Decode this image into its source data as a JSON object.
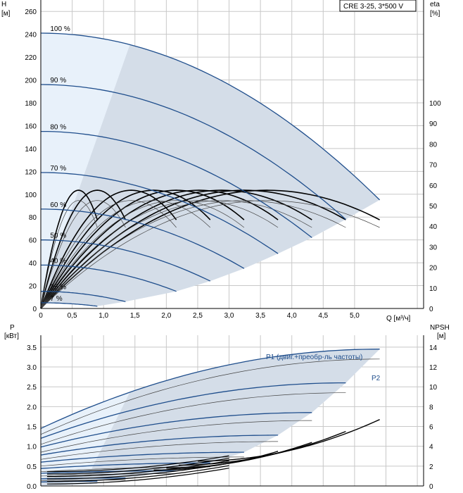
{
  "chart_data": [
    {
      "type": "line",
      "title": "CRE 3-25, 3*500 V",
      "y_label": "H",
      "y_unit": "[м]",
      "y2_label": "eta",
      "y2_unit": "[%]",
      "x_label": "Q [м³/ч]",
      "xlim": [
        0,
        6.1
      ],
      "ylim": [
        0,
        270
      ],
      "y2lim": [
        0,
        100
      ],
      "x_ticks": [
        "0",
        "0,5",
        "1,0",
        "1,5",
        "2,0",
        "2,5",
        "3,0",
        "3,5",
        "4,0",
        "4,5",
        "5,0"
      ],
      "y_ticks": [
        "0",
        "20",
        "40",
        "60",
        "80",
        "100",
        "120",
        "140",
        "160",
        "180",
        "200",
        "220",
        "240",
        "260"
      ],
      "y2_ticks": [
        "0",
        "10",
        "20",
        "30",
        "40",
        "50",
        "60",
        "70",
        "80",
        "90",
        "100"
      ],
      "grid": true,
      "speed_curves": [
        {
          "label": "100 %",
          "h0": 241,
          "qmax": 5.4,
          "hend": 95
        },
        {
          "label": "90 %",
          "h0": 196,
          "qmax": 4.86,
          "hend": 78
        },
        {
          "label": "80 %",
          "h0": 155,
          "qmax": 4.32,
          "hend": 62
        },
        {
          "label": "70 %",
          "h0": 119,
          "qmax": 3.78,
          "hend": 48
        },
        {
          "label": "60 %",
          "h0": 87,
          "qmax": 3.24,
          "hend": 35
        },
        {
          "label": "50 %",
          "h0": 60,
          "qmax": 2.7,
          "hend": 24
        },
        {
          "label": "40 %",
          "h0": 38,
          "qmax": 2.16,
          "hend": 15
        },
        {
          "label": "25 %",
          "h0": 15,
          "qmax": 1.35,
          "hend": 6
        },
        {
          "label": "7 %",
          "h0": 5,
          "qmax": 0.9,
          "hend": 2
        }
      ],
      "efficiency_curves": [
        {
          "peak_q": 3.6,
          "peak_eta": 57.5,
          "qmax": 5.4
        },
        {
          "peak_q": 3.24,
          "peak_eta": 57.5,
          "qmax": 4.86
        },
        {
          "peak_q": 2.88,
          "peak_eta": 57.5,
          "qmax": 4.32
        },
        {
          "peak_q": 2.52,
          "peak_eta": 57.5,
          "qmax": 3.78
        },
        {
          "peak_q": 2.16,
          "peak_eta": 57.5,
          "qmax": 3.24
        },
        {
          "peak_q": 1.8,
          "peak_eta": 57.5,
          "qmax": 2.7
        },
        {
          "peak_q": 1.44,
          "peak_eta": 57.5,
          "qmax": 2.16
        },
        {
          "peak_q": 0.9,
          "peak_eta": 57.5,
          "qmax": 1.35
        },
        {
          "peak_q": 0.6,
          "peak_eta": 57.5,
          "qmax": 0.9
        },
        {
          "peak_q": 3.6,
          "peak_eta": 52.5,
          "qmax": 5.4
        },
        {
          "peak_q": 3.24,
          "peak_eta": 52.5,
          "qmax": 4.86
        },
        {
          "peak_q": 2.88,
          "peak_eta": 52.5,
          "qmax": 4.32
        },
        {
          "peak_q": 2.52,
          "peak_eta": 52.5,
          "qmax": 3.78
        },
        {
          "peak_q": 2.16,
          "peak_eta": 52.5,
          "qmax": 3.24
        },
        {
          "peak_q": 1.8,
          "peak_eta": 52.5,
          "qmax": 2.7
        },
        {
          "peak_q": 1.44,
          "peak_eta": 52.5,
          "qmax": 2.16
        },
        {
          "peak_q": 0.9,
          "peak_eta": 52.5,
          "qmax": 1.35
        },
        {
          "peak_q": 0.6,
          "peak_eta": 52.5,
          "qmax": 0.9
        }
      ]
    },
    {
      "type": "line",
      "y_label": "P",
      "y_unit": "[кВт]",
      "y2_label": "NPSH",
      "y2_unit": "[м]",
      "xlim": [
        0,
        6.1
      ],
      "ylim": [
        0,
        3.8
      ],
      "y2lim": [
        0,
        15.2
      ],
      "y_ticks": [
        "0.0",
        "0.5",
        "1.0",
        "1.5",
        "2.0",
        "2.5",
        "3.0",
        "3.5"
      ],
      "y2_ticks": [
        "0",
        "2",
        "4",
        "6",
        "8",
        "10",
        "12",
        "14"
      ],
      "series_labels": [
        "P1 (двиг.+преобр-ль частоты)",
        "P2"
      ],
      "grid": true,
      "p1_curves": [
        {
          "p0": 1.45,
          "pmax": 3.45,
          "qmax": 5.4
        },
        {
          "p0": 1.2,
          "pmax": 2.6,
          "qmax": 4.86
        },
        {
          "p0": 0.98,
          "pmax": 1.85,
          "qmax": 4.32
        },
        {
          "p0": 0.78,
          "pmax": 1.28,
          "qmax": 3.78
        },
        {
          "p0": 0.6,
          "pmax": 0.85,
          "qmax": 3.24
        },
        {
          "p0": 0.44,
          "pmax": 0.58,
          "qmax": 2.7
        },
        {
          "p0": 0.32,
          "pmax": 0.38,
          "qmax": 2.16
        },
        {
          "p0": 0.18,
          "pmax": 0.2,
          "qmax": 1.35
        },
        {
          "p0": 0.1,
          "pmax": 0.12,
          "qmax": 0.9
        }
      ],
      "p2_curves": [
        {
          "p0": 1.3,
          "pmax": 3.2,
          "qmax": 5.4
        },
        {
          "p0": 1.05,
          "pmax": 2.35,
          "qmax": 4.86
        },
        {
          "p0": 0.85,
          "pmax": 1.65,
          "qmax": 4.32
        },
        {
          "p0": 0.67,
          "pmax": 1.12,
          "qmax": 3.78
        },
        {
          "p0": 0.5,
          "pmax": 0.73,
          "qmax": 3.24
        },
        {
          "p0": 0.36,
          "pmax": 0.48,
          "qmax": 2.7
        },
        {
          "p0": 0.25,
          "pmax": 0.31,
          "qmax": 2.16
        },
        {
          "p0": 0.13,
          "pmax": 0.15,
          "qmax": 1.35
        }
      ],
      "npsh_curves": [
        {
          "q0": 2.5,
          "n0": 2.5,
          "qmax": 5.4,
          "nmax": 6.7
        },
        {
          "q0": 2.2,
          "n0": 2.1,
          "qmax": 4.86,
          "nmax": 5.5
        },
        {
          "q0": 2.0,
          "n0": 1.8,
          "qmax": 4.32,
          "nmax": 4.4
        },
        {
          "q0": 1.8,
          "n0": 1.6,
          "qmax": 3.78,
          "nmax": 3.5
        }
      ]
    }
  ],
  "colors": {
    "grid": "#c8c8c8",
    "region_fill": "#d4dde8",
    "region_light": "#e8f1fa",
    "speed_curve": "#1f4e8c",
    "eff_curve": "#000000",
    "thin_curve": "#444444"
  }
}
